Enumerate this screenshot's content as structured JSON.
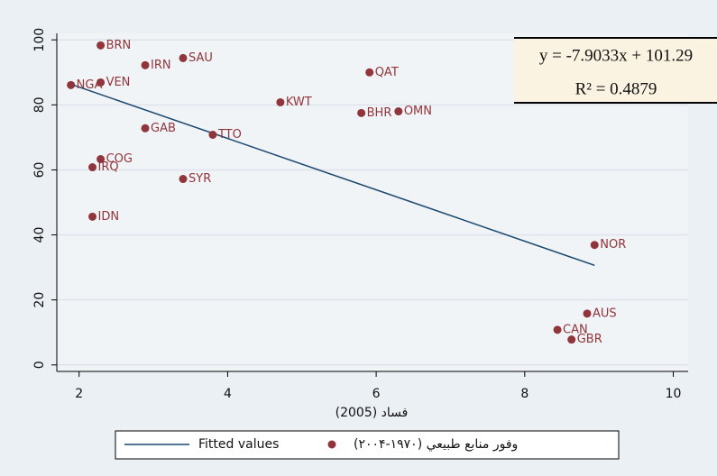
{
  "chart_data": {
    "type": "scatter",
    "xlabel": "(2005)  فساد",
    "xlim": [
      1.7,
      10.2
    ],
    "xticks": [
      2,
      4,
      6,
      8,
      10
    ],
    "ylim": [
      -2,
      102
    ],
    "yticks": [
      0,
      20,
      40,
      60,
      80,
      100
    ],
    "grid": true,
    "series": [
      {
        "name": "Fitted values",
        "style": "line",
        "color": "#1a476f",
        "x": [
          1.89,
          8.94
        ],
        "values": [
          86.35,
          30.63
        ]
      },
      {
        "name": "وفور منابع طبيعي (۱۹۷۰-۲۰۰۴)",
        "style": "marker",
        "color": "#90353b",
        "x": [
          2.29,
          3.4,
          2.89,
          5.91,
          1.89,
          2.29,
          4.71,
          5.8,
          6.3,
          2.89,
          3.8,
          2.29,
          2.18,
          3.4,
          2.18,
          8.94,
          8.84,
          8.44,
          8.63
        ],
        "values": [
          98.3,
          94.4,
          92.2,
          90.0,
          86.1,
          86.9,
          80.8,
          77.5,
          78.0,
          72.8,
          70.8,
          63.3,
          60.8,
          57.2,
          45.6,
          36.9,
          15.8,
          10.8,
          7.8
        ],
        "point_labels": [
          "BRN",
          "SAU",
          "IRN",
          "QAT",
          "NGA",
          "VEN",
          "KWT",
          "BHR",
          "OMN",
          "GAB",
          "TTO",
          "COG",
          "IRQ",
          "SYR",
          "IDN",
          "NOR",
          "AUS",
          "CAN",
          "GBR"
        ]
      }
    ],
    "annotations": [
      "y = -7.9033x + 101.29",
      "R² = 0.4879"
    ]
  }
}
